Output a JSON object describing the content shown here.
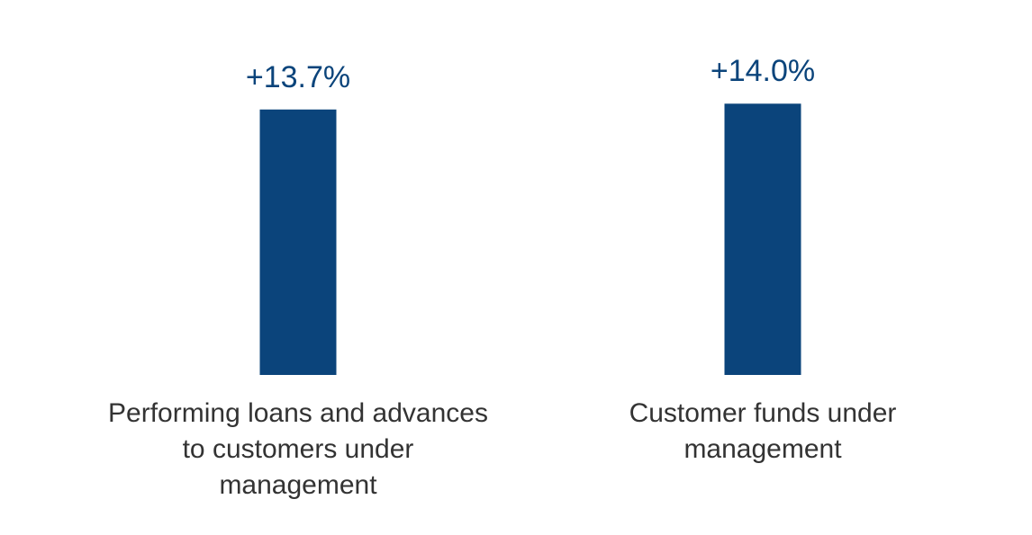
{
  "chart_data": {
    "type": "bar",
    "categories": [
      "Performing loans and advances to customers under management",
      "Customer funds under management"
    ],
    "values": [
      13.7,
      14.0
    ],
    "value_labels": [
      "+13.7%",
      "+14.0%"
    ],
    "color": "#0b447b"
  }
}
